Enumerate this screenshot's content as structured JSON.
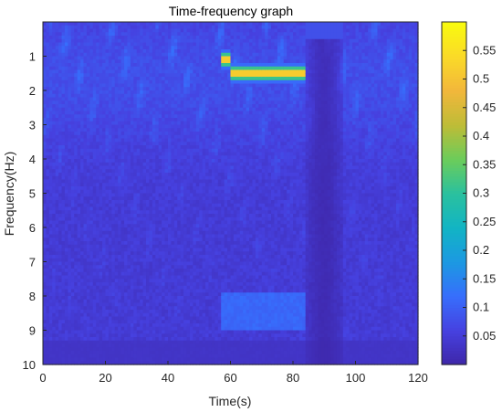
{
  "chart_data": {
    "type": "heatmap",
    "title": "Time-frequency graph",
    "xlabel": "Time(s)",
    "ylabel": "Frequency(Hz)",
    "xlim": [
      0,
      120
    ],
    "ylim": [
      10,
      0
    ],
    "y_reversed": true,
    "x_ticks": [
      0,
      20,
      40,
      60,
      80,
      100,
      120
    ],
    "y_ticks": [
      1,
      2,
      3,
      4,
      5,
      6,
      7,
      8,
      9,
      10
    ],
    "colormap": "parula",
    "colorbar": {
      "range": [
        0,
        0.6
      ],
      "ticks": [
        0.05,
        0.1,
        0.15,
        0.2,
        0.25,
        0.3,
        0.35,
        0.4,
        0.45,
        0.5,
        0.55
      ]
    },
    "features": [
      {
        "t_start": 57,
        "t_end": 84,
        "f": 1.5,
        "value": 0.55
      },
      {
        "t_start": 57,
        "t_end": 84,
        "f": 8.5,
        "value": 0.12
      },
      {
        "t_start": 84,
        "t_end": 96,
        "f_start": 0,
        "f_end": 10,
        "value": 0.02
      }
    ]
  },
  "colors": {
    "background_low": "#3d26a8",
    "high": "#f9fb0e",
    "axis": "#262626"
  }
}
